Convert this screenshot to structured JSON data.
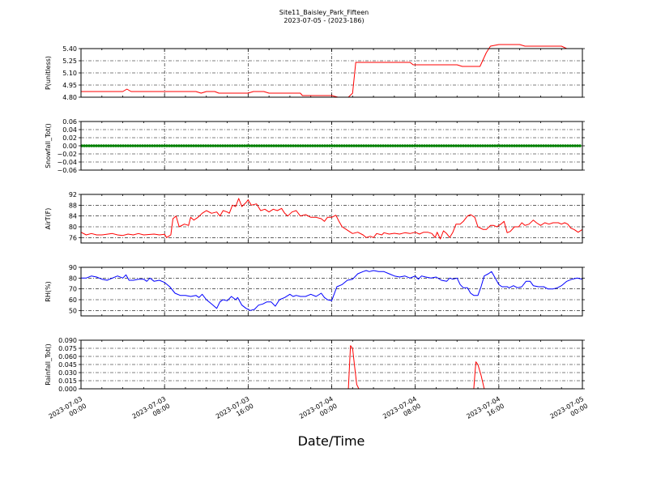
{
  "title_line1": "Site11_Baisley_Park_Fifteen",
  "title_line2": "2023-07-05 - (2023-186)",
  "chart_data": {
    "type": "line",
    "xlabel": "Date/Time",
    "x_range": [
      "2023-07-03 00:00",
      "2023-07-05 00:00"
    ],
    "x_ticks": [
      {
        "line1": "2023-07-03",
        "line2": "00:00"
      },
      {
        "line1": "2023-07-03",
        "line2": "08:00"
      },
      {
        "line1": "2023-07-03",
        "line2": "16:00"
      },
      {
        "line1": "2023-07-04",
        "line2": "00:00"
      },
      {
        "line1": "2023-07-04",
        "line2": "08:00"
      },
      {
        "line1": "2023-07-04",
        "line2": "16:00"
      },
      {
        "line1": "2023-07-05",
        "line2": "00:00"
      }
    ],
    "x_hours_of_ticks": [
      0,
      8,
      16,
      24,
      32,
      40,
      48
    ],
    "grid": true,
    "panels": [
      {
        "ylabel": "P(unitless)",
        "ylim": [
          4.8,
          5.4
        ],
        "yticks": [
          "4.80",
          "4.95",
          "5.10",
          "5.25",
          "5.40"
        ],
        "ytick_values": [
          4.8,
          4.95,
          5.1,
          5.25,
          5.4
        ],
        "color": "#ff0000",
        "points": [
          [
            0,
            4.87
          ],
          [
            4,
            4.87
          ],
          [
            4.4,
            4.9
          ],
          [
            4.8,
            4.87
          ],
          [
            8,
            4.87
          ],
          [
            11,
            4.87
          ],
          [
            11.5,
            4.85
          ],
          [
            12,
            4.87
          ],
          [
            12.8,
            4.87
          ],
          [
            13.2,
            4.85
          ],
          [
            16,
            4.85
          ],
          [
            16.5,
            4.87
          ],
          [
            17.5,
            4.87
          ],
          [
            18,
            4.85
          ],
          [
            21,
            4.85
          ],
          [
            21.2,
            4.82
          ],
          [
            24,
            4.82
          ],
          [
            24.6,
            4.8
          ],
          [
            25.6,
            4.8
          ],
          [
            26,
            4.85
          ],
          [
            26.3,
            5.23
          ],
          [
            30,
            5.23
          ],
          [
            31.5,
            5.23
          ],
          [
            31.8,
            5.2
          ],
          [
            36,
            5.2
          ],
          [
            36.5,
            5.18
          ],
          [
            37.5,
            5.18
          ],
          [
            38.2,
            5.18
          ],
          [
            38.8,
            5.35
          ],
          [
            39.2,
            5.43
          ],
          [
            40,
            5.45
          ],
          [
            42,
            5.45
          ],
          [
            42.5,
            5.43
          ],
          [
            46,
            5.43
          ],
          [
            46.5,
            5.4
          ],
          [
            48,
            5.4
          ]
        ]
      },
      {
        "ylabel": "Snowfall_Tot()",
        "ylim": [
          -0.06,
          0.06
        ],
        "yticks": [
          "−0.06",
          "−0.04",
          "−0.02",
          "0.00",
          "0.02",
          "0.04",
          "0.06"
        ],
        "ytick_values": [
          -0.06,
          -0.04,
          -0.02,
          0,
          0.02,
          0.04,
          0.06
        ],
        "color": "#008000",
        "style": "dots",
        "points": [
          [
            0,
            0
          ],
          [
            48,
            0
          ]
        ]
      },
      {
        "ylabel": "AirT(F)",
        "ylim": [
          74,
          92
        ],
        "yticks": [
          "76",
          "80",
          "84",
          "88",
          "92"
        ],
        "ytick_values": [
          76,
          80,
          84,
          88,
          92
        ],
        "color": "#ff0000",
        "points": [
          [
            0,
            78
          ],
          [
            0.5,
            77
          ],
          [
            1,
            77.5
          ],
          [
            1.5,
            77
          ],
          [
            2,
            77
          ],
          [
            3,
            77.5
          ],
          [
            3.5,
            77
          ],
          [
            4,
            76.8
          ],
          [
            4.5,
            77.3
          ],
          [
            5,
            77
          ],
          [
            5.5,
            77.5
          ],
          [
            6,
            77
          ],
          [
            7,
            77.3
          ],
          [
            7.5,
            77
          ],
          [
            8,
            77.2
          ],
          [
            8.2,
            76
          ],
          [
            8.6,
            77
          ],
          [
            8.8,
            83
          ],
          [
            9.1,
            84
          ],
          [
            9.4,
            80
          ],
          [
            9.9,
            81
          ],
          [
            10.3,
            80.5
          ],
          [
            10.5,
            83.5
          ],
          [
            10.8,
            82.5
          ],
          [
            11.2,
            83.5
          ],
          [
            11.6,
            85
          ],
          [
            12,
            86
          ],
          [
            12.5,
            85
          ],
          [
            13,
            85.5
          ],
          [
            13.3,
            84
          ],
          [
            13.6,
            86
          ],
          [
            14,
            85.5
          ],
          [
            14.2,
            85
          ],
          [
            14.5,
            88
          ],
          [
            14.8,
            87.5
          ],
          [
            15.1,
            90.5
          ],
          [
            15.4,
            87.5
          ],
          [
            15.8,
            89
          ],
          [
            16,
            90
          ],
          [
            16.3,
            88
          ],
          [
            16.8,
            88.5
          ],
          [
            17.2,
            86
          ],
          [
            17.6,
            86.5
          ],
          [
            18,
            85.5
          ],
          [
            18.4,
            86.5
          ],
          [
            18.8,
            86
          ],
          [
            19.2,
            86.8
          ],
          [
            19.5,
            85
          ],
          [
            19.8,
            84
          ],
          [
            20.2,
            85.5
          ],
          [
            20.6,
            86
          ],
          [
            21,
            84
          ],
          [
            21.5,
            84.5
          ],
          [
            22,
            83.5
          ],
          [
            22.5,
            83.5
          ],
          [
            23,
            83
          ],
          [
            23.3,
            82
          ],
          [
            23.6,
            83.5
          ],
          [
            24,
            83.5
          ],
          [
            24.4,
            84.3
          ],
          [
            24.7,
            82
          ],
          [
            25,
            80
          ],
          [
            25.4,
            79
          ],
          [
            25.8,
            78
          ],
          [
            26,
            77.5
          ],
          [
            26.5,
            78
          ],
          [
            27,
            77
          ],
          [
            27.3,
            76
          ],
          [
            27.7,
            76.5
          ],
          [
            28,
            76
          ],
          [
            28.3,
            77.5
          ],
          [
            28.8,
            77
          ],
          [
            29,
            77.8
          ],
          [
            29.5,
            77.3
          ],
          [
            30,
            77.6
          ],
          [
            30.5,
            77.3
          ],
          [
            31,
            77.8
          ],
          [
            31.5,
            77.5
          ],
          [
            32,
            78
          ],
          [
            32.4,
            77.3
          ],
          [
            32.8,
            78
          ],
          [
            33.2,
            78
          ],
          [
            33.6,
            77.5
          ],
          [
            33.9,
            76
          ],
          [
            34.1,
            78
          ],
          [
            34.4,
            75.5
          ],
          [
            34.7,
            78.5
          ],
          [
            35,
            77.5
          ],
          [
            35.3,
            76
          ],
          [
            35.6,
            78
          ],
          [
            35.9,
            81
          ],
          [
            36.3,
            81
          ],
          [
            36.6,
            82
          ],
          [
            37,
            84
          ],
          [
            37.3,
            84.5
          ],
          [
            37.7,
            83.5
          ],
          [
            38,
            80
          ],
          [
            38.5,
            79
          ],
          [
            38.8,
            79
          ],
          [
            39.2,
            80.5
          ],
          [
            39.5,
            80.5
          ],
          [
            39.8,
            80
          ],
          [
            40.2,
            81
          ],
          [
            40.5,
            82
          ],
          [
            40.8,
            77.8
          ],
          [
            41.1,
            78.3
          ],
          [
            41.5,
            80
          ],
          [
            41.9,
            80
          ],
          [
            42.2,
            81.5
          ],
          [
            42.5,
            80.5
          ],
          [
            42.9,
            81
          ],
          [
            43.3,
            82.5
          ],
          [
            43.6,
            81.5
          ],
          [
            44,
            80.5
          ],
          [
            44.4,
            81.5
          ],
          [
            44.8,
            81
          ],
          [
            45.2,
            81.5
          ],
          [
            45.7,
            81.5
          ],
          [
            46,
            81
          ],
          [
            46.3,
            81.5
          ],
          [
            46.6,
            81
          ],
          [
            46.9,
            79.5
          ],
          [
            47.2,
            79
          ],
          [
            47.6,
            78
          ],
          [
            48,
            79
          ]
        ]
      },
      {
        "ylabel": "RH(%)",
        "ylim": [
          45,
          90
        ],
        "yticks": [
          "50",
          "60",
          "70",
          "80",
          "90"
        ],
        "ytick_values": [
          50,
          60,
          70,
          80,
          90
        ],
        "color": "#0000ff",
        "points": [
          [
            0,
            80
          ],
          [
            0.5,
            80
          ],
          [
            1,
            82
          ],
          [
            1.5,
            81
          ],
          [
            2,
            79
          ],
          [
            2.5,
            78
          ],
          [
            3,
            80
          ],
          [
            3.5,
            82
          ],
          [
            4,
            80
          ],
          [
            4.3,
            83
          ],
          [
            4.6,
            78
          ],
          [
            5,
            78
          ],
          [
            5.5,
            79
          ],
          [
            6,
            79
          ],
          [
            6.3,
            77
          ],
          [
            6.6,
            80
          ],
          [
            7,
            77
          ],
          [
            7.5,
            78
          ],
          [
            8,
            76
          ],
          [
            8.5,
            72
          ],
          [
            9,
            66
          ],
          [
            9.5,
            64
          ],
          [
            10,
            64
          ],
          [
            10.5,
            63
          ],
          [
            11,
            64
          ],
          [
            11.3,
            62
          ],
          [
            11.6,
            65
          ],
          [
            12,
            60
          ],
          [
            12.5,
            56
          ],
          [
            13,
            52
          ],
          [
            13.3,
            58
          ],
          [
            13.6,
            60
          ],
          [
            14,
            59
          ],
          [
            14.4,
            63
          ],
          [
            14.8,
            60
          ],
          [
            15,
            62
          ],
          [
            15.4,
            55
          ],
          [
            15.8,
            52
          ],
          [
            16.2,
            50
          ],
          [
            16.6,
            51
          ],
          [
            17,
            55
          ],
          [
            17.4,
            56
          ],
          [
            17.8,
            58
          ],
          [
            18.2,
            58
          ],
          [
            18.6,
            54
          ],
          [
            19,
            60
          ],
          [
            19.5,
            62
          ],
          [
            20,
            65
          ],
          [
            20.3,
            63
          ],
          [
            20.6,
            64
          ],
          [
            21,
            63
          ],
          [
            21.5,
            63
          ],
          [
            22,
            65
          ],
          [
            22.5,
            63
          ],
          [
            23,
            66
          ],
          [
            23.3,
            62
          ],
          [
            23.6,
            60
          ],
          [
            24,
            59
          ],
          [
            24.5,
            72
          ],
          [
            25,
            74
          ],
          [
            25.5,
            78
          ],
          [
            26,
            79
          ],
          [
            26.5,
            84
          ],
          [
            27,
            86
          ],
          [
            27.3,
            87
          ],
          [
            27.6,
            86
          ],
          [
            28,
            87
          ],
          [
            28.5,
            86
          ],
          [
            29,
            86
          ],
          [
            29.5,
            84
          ],
          [
            30,
            82
          ],
          [
            30.5,
            81
          ],
          [
            31,
            82
          ],
          [
            31.5,
            80
          ],
          [
            32,
            82
          ],
          [
            32.3,
            79
          ],
          [
            32.6,
            82
          ],
          [
            33,
            81
          ],
          [
            33.5,
            80
          ],
          [
            34,
            81
          ],
          [
            34.5,
            78
          ],
          [
            35,
            77
          ],
          [
            35.3,
            80
          ],
          [
            35.6,
            79
          ],
          [
            36,
            80
          ],
          [
            36.3,
            74
          ],
          [
            36.6,
            71
          ],
          [
            37,
            71
          ],
          [
            37.3,
            66
          ],
          [
            37.6,
            64
          ],
          [
            38,
            64
          ],
          [
            38.3,
            72
          ],
          [
            38.6,
            82
          ],
          [
            39,
            84
          ],
          [
            39.3,
            86
          ],
          [
            39.6,
            81
          ],
          [
            40,
            74
          ],
          [
            40.3,
            72
          ],
          [
            40.8,
            72
          ],
          [
            41,
            71
          ],
          [
            41.4,
            73
          ],
          [
            41.8,
            71
          ],
          [
            42.2,
            72
          ],
          [
            42.6,
            77
          ],
          [
            43,
            77
          ],
          [
            43.3,
            73
          ],
          [
            43.8,
            72
          ],
          [
            44.3,
            72
          ],
          [
            44.7,
            70
          ],
          [
            45.2,
            70
          ],
          [
            45.6,
            71
          ],
          [
            46,
            73
          ],
          [
            46.5,
            77
          ],
          [
            47,
            79
          ],
          [
            47.5,
            80
          ],
          [
            48,
            79
          ]
        ]
      },
      {
        "ylabel": "Rainfall_Tot()",
        "ylim": [
          0,
          0.09
        ],
        "yticks": [
          "0.000",
          "0.015",
          "0.030",
          "0.045",
          "0.060",
          "0.075",
          "0.090"
        ],
        "ytick_values": [
          0,
          0.015,
          0.03,
          0.045,
          0.06,
          0.075,
          0.09
        ],
        "color": "#ff0000",
        "points": [
          [
            0,
            0
          ],
          [
            25.6,
            0
          ],
          [
            25.8,
            0.08
          ],
          [
            26.0,
            0.075
          ],
          [
            26.2,
            0.04
          ],
          [
            26.4,
            0.008
          ],
          [
            26.6,
            0
          ],
          [
            37.6,
            0
          ],
          [
            37.8,
            0.05
          ],
          [
            38.0,
            0.045
          ],
          [
            38.3,
            0.025
          ],
          [
            38.6,
            0
          ],
          [
            48,
            0
          ]
        ]
      }
    ]
  }
}
